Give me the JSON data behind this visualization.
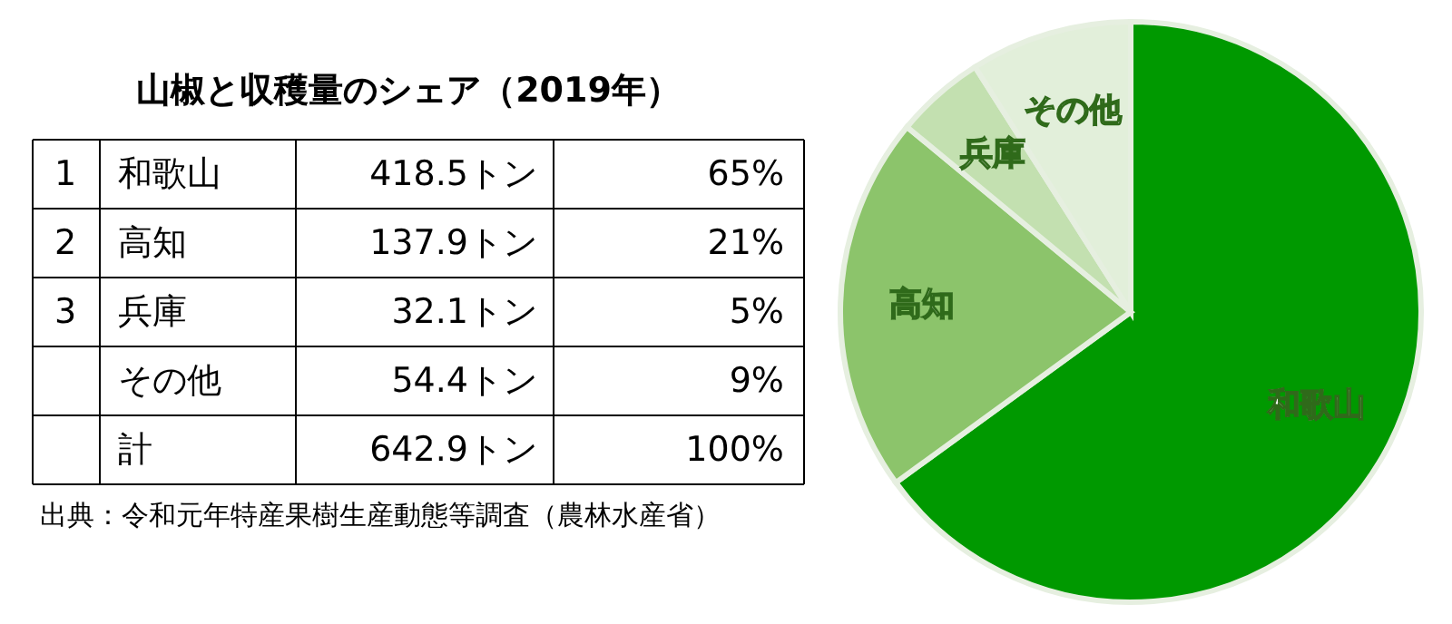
{
  "chart_data": [
    {
      "type": "other",
      "title": "山椒と収穫量のシェア（2019年）",
      "annotations": [
        "1",
        "和歌山",
        "418.5トン",
        "65%",
        "2",
        "高知",
        "137.9トン",
        "21%",
        "3",
        "兵庫",
        "32.1トン",
        "5%",
        null,
        "その他",
        "54.4トン",
        "9%",
        null,
        "計",
        "642.9トン",
        "100%",
        "出典：令和元年特産果樹生産動態等調査（農林水産省）"
      ]
    },
    {
      "type": "pie",
      "categories": [
        "和歌山",
        "高知",
        "兵庫",
        "その他"
      ],
      "values": [
        65,
        21,
        5,
        9
      ],
      "colors": [
        "#009900",
        "#8cc46b",
        "#c3e0b0",
        "#e2efda"
      ]
    }
  ]
}
